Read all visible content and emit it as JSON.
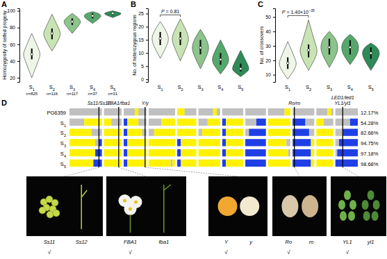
{
  "chart_data": [
    {
      "type": "violin",
      "title": "A",
      "y_label": "Homozygosity of selfed progeny",
      "categories": [
        "S1",
        "S2",
        "S3",
        "S4",
        "S5"
      ],
      "n_labels": [
        "n=825",
        "n=116",
        "n=117",
        "n=37",
        "n=31"
      ],
      "values": [
        48,
        73,
        87,
        94,
        97
      ],
      "q1": [
        42,
        66,
        83,
        91,
        95
      ],
      "q3": [
        55,
        79,
        91,
        97,
        98
      ],
      "min": [
        20,
        52,
        73,
        85,
        92
      ],
      "max": [
        73,
        96,
        97,
        99,
        100
      ],
      "colors": [
        "#eef6e8",
        "#c8e4b4",
        "#8cc48c",
        "#55a86c",
        "#2e8b57"
      ],
      "ylim": [
        15,
        103
      ],
      "yticks": [
        20,
        40,
        60,
        80,
        100
      ]
    },
    {
      "type": "violin",
      "title": "B",
      "y_label": "No. of heterozygous regions",
      "categories": [
        "S1",
        "S2",
        "S3",
        "S4",
        "S5"
      ],
      "values": [
        15.5,
        15.5,
        12,
        7.5,
        4
      ],
      "q1": [
        13,
        13,
        9.5,
        5.5,
        3
      ],
      "q3": [
        18,
        18,
        15,
        10,
        6
      ],
      "min": [
        8,
        7,
        4,
        2,
        1
      ],
      "max": [
        22,
        23,
        19,
        15,
        11
      ],
      "colors": [
        "#eef6e8",
        "#c8e4b4",
        "#8cc48c",
        "#55a86c",
        "#2e8b57"
      ],
      "ylim": [
        -1,
        27
      ],
      "yticks": [
        0,
        5,
        10,
        15,
        20,
        25
      ],
      "annotation": {
        "text": "P = 0.81",
        "y": 24.5
      }
    },
    {
      "type": "violin",
      "title": "C",
      "y_label": "No. of crossovers",
      "categories": [
        "S1",
        "S2",
        "S3",
        "S4",
        "S5"
      ],
      "values": [
        18,
        27,
        29,
        29,
        25
      ],
      "q1": [
        14,
        22,
        24,
        24,
        21
      ],
      "q3": [
        22,
        31,
        35,
        34,
        29
      ],
      "min": [
        7,
        13,
        15,
        17,
        13
      ],
      "max": [
        33,
        48,
        40,
        38,
        32
      ],
      "colors": [
        "#eef6e8",
        "#c8e4b4",
        "#8cc48c",
        "#55a86c",
        "#2e8b57"
      ],
      "ylim": [
        5,
        56
      ],
      "yticks": [
        10,
        20,
        30,
        40,
        50
      ],
      "annotation": {
        "text": "P = 1.40×10",
        "superscript": "−35",
        "y": 51
      }
    }
  ],
  "panel_d": {
    "title": "D",
    "chromosome_lengths": [
      88,
      48,
      62,
      72,
      52,
      59,
      57,
      56,
      61,
      59,
      46,
      61
    ],
    "state_colors": {
      "h": "#c0c0c0",
      "a": "#fff200",
      "b": "#1f3fe6"
    },
    "markers": [
      {
        "chromosome": 0,
        "position": 80,
        "labels": [
          "Ss11/Ss12"
        ]
      },
      {
        "chromosome": 1,
        "position": 40,
        "labels": [
          "FBA1/fba1"
        ]
      },
      {
        "chromosome": 2,
        "position": 58,
        "labels": [
          "Y/y"
        ]
      },
      {
        "chromosome": 9,
        "position": 5,
        "labels": [
          "Ro/ro"
        ]
      },
      {
        "chromosome": 11,
        "position": 20,
        "labels": [
          "LED1/led1",
          "YL1/yl1"
        ]
      }
    ],
    "rows": [
      {
        "name": "PG6359",
        "homozygosity": "12.17%",
        "segments": [
          [
            [
              88,
              "h"
            ]
          ],
          [
            [
              48,
              "h"
            ]
          ],
          [
            [
              30,
              "h"
            ],
            [
              40,
              "a"
            ],
            [
              62,
              "h"
            ]
          ],
          [
            [
              72,
              "h"
            ]
          ],
          [
            [
              20,
              "a"
            ],
            [
              52,
              "h"
            ]
          ],
          [
            [
              40,
              "h"
            ],
            [
              50,
              "a"
            ],
            [
              59,
              "h"
            ]
          ],
          [
            [
              57,
              "h"
            ]
          ],
          [
            [
              56,
              "h"
            ]
          ],
          [
            [
              45,
              "h"
            ],
            [
              61,
              "a"
            ]
          ],
          [
            [
              59,
              "h"
            ]
          ],
          [
            [
              30,
              "h"
            ],
            [
              40,
              "a"
            ],
            [
              46,
              "h"
            ]
          ],
          [
            [
              61,
              "h"
            ]
          ]
        ]
      },
      {
        "name": "S1",
        "homozygosity": "54.28%",
        "segments": [
          [
            [
              40,
              "h"
            ],
            [
              88,
              "a"
            ]
          ],
          [
            [
              20,
              "a"
            ],
            [
              48,
              "h"
            ]
          ],
          [
            [
              10,
              "b"
            ],
            [
              40,
              "a"
            ],
            [
              62,
              "h"
            ]
          ],
          [
            [
              35,
              "h"
            ],
            [
              72,
              "a"
            ]
          ],
          [
            [
              52,
              "a"
            ]
          ],
          [
            [
              25,
              "h"
            ],
            [
              59,
              "a"
            ]
          ],
          [
            [
              10,
              "b"
            ],
            [
              57,
              "a"
            ]
          ],
          [
            [
              30,
              "h"
            ],
            [
              56,
              "b"
            ]
          ],
          [
            [
              61,
              "a"
            ]
          ],
          [
            [
              35,
              "b"
            ],
            [
              59,
              "h"
            ]
          ],
          [
            [
              20,
              "a"
            ],
            [
              46,
              "h"
            ]
          ],
          [
            [
              40,
              "h"
            ],
            [
              61,
              "b"
            ]
          ]
        ]
      },
      {
        "name": "S2",
        "homozygosity": "82.66%",
        "segments": [
          [
            [
              60,
              "a"
            ],
            [
              88,
              "h"
            ]
          ],
          [
            [
              48,
              "a"
            ]
          ],
          [
            [
              10,
              "b"
            ],
            [
              50,
              "a"
            ],
            [
              62,
              "h"
            ]
          ],
          [
            [
              15,
              "h"
            ],
            [
              72,
              "a"
            ]
          ],
          [
            [
              52,
              "a"
            ]
          ],
          [
            [
              10,
              "h"
            ],
            [
              59,
              "a"
            ]
          ],
          [
            [
              10,
              "b"
            ],
            [
              57,
              "a"
            ]
          ],
          [
            [
              10,
              "h"
            ],
            [
              56,
              "b"
            ]
          ],
          [
            [
              61,
              "a"
            ]
          ],
          [
            [
              45,
              "b"
            ],
            [
              59,
              "h"
            ]
          ],
          [
            [
              46,
              "a"
            ]
          ],
          [
            [
              20,
              "h"
            ],
            [
              61,
              "b"
            ]
          ]
        ]
      },
      {
        "name": "S3",
        "homozygosity": "94.75%",
        "segments": [
          [
            [
              70,
              "a"
            ],
            [
              80,
              "h"
            ],
            [
              88,
              "b"
            ]
          ],
          [
            [
              48,
              "a"
            ]
          ],
          [
            [
              10,
              "b"
            ],
            [
              62,
              "a"
            ]
          ],
          [
            [
              72,
              "a"
            ]
          ],
          [
            [
              10,
              "b"
            ],
            [
              52,
              "a"
            ]
          ],
          [
            [
              59,
              "a"
            ]
          ],
          [
            [
              10,
              "b"
            ],
            [
              57,
              "a"
            ]
          ],
          [
            [
              56,
              "b"
            ]
          ],
          [
            [
              50,
              "a"
            ],
            [
              61,
              "h"
            ]
          ],
          [
            [
              50,
              "b"
            ],
            [
              59,
              "a"
            ]
          ],
          [
            [
              46,
              "a"
            ]
          ],
          [
            [
              10,
              "h"
            ],
            [
              61,
              "b"
            ]
          ]
        ]
      },
      {
        "name": "S4",
        "homozygosity": "97.18%",
        "segments": [
          [
            [
              70,
              "a"
            ],
            [
              88,
              "b"
            ]
          ],
          [
            [
              48,
              "a"
            ]
          ],
          [
            [
              10,
              "b"
            ],
            [
              62,
              "a"
            ]
          ],
          [
            [
              72,
              "a"
            ]
          ],
          [
            [
              10,
              "b"
            ],
            [
              52,
              "a"
            ]
          ],
          [
            [
              59,
              "a"
            ]
          ],
          [
            [
              10,
              "b"
            ],
            [
              57,
              "a"
            ]
          ],
          [
            [
              56,
              "b"
            ]
          ],
          [
            [
              55,
              "a"
            ],
            [
              61,
              "h"
            ]
          ],
          [
            [
              50,
              "b"
            ],
            [
              59,
              "a"
            ]
          ],
          [
            [
              46,
              "a"
            ]
          ],
          [
            [
              5,
              "h"
            ],
            [
              61,
              "b"
            ]
          ]
        ]
      },
      {
        "name": "S5",
        "homozygosity": "98.68%",
        "segments": [
          [
            [
              65,
              "a"
            ],
            [
              88,
              "b"
            ]
          ],
          [
            [
              48,
              "a"
            ]
          ],
          [
            [
              10,
              "b"
            ],
            [
              62,
              "a"
            ]
          ],
          [
            [
              60,
              "a"
            ],
            [
              65,
              "h"
            ],
            [
              72,
              "a"
            ]
          ],
          [
            [
              10,
              "b"
            ],
            [
              52,
              "a"
            ]
          ],
          [
            [
              59,
              "a"
            ]
          ],
          [
            [
              10,
              "b"
            ],
            [
              57,
              "a"
            ]
          ],
          [
            [
              56,
              "b"
            ]
          ],
          [
            [
              61,
              "a"
            ]
          ],
          [
            [
              50,
              "b"
            ],
            [
              59,
              "a"
            ]
          ],
          [
            [
              46,
              "a"
            ]
          ],
          [
            [
              61,
              "b"
            ]
          ]
        ]
      }
    ],
    "photos": [
      {
        "labels": [
          "Ss11",
          "Ss12"
        ],
        "check": "√"
      },
      {
        "labels": [
          "FBA1",
          "fba1"
        ],
        "check": "√"
      },
      {
        "labels": [
          "Y",
          "y"
        ],
        "check": "√"
      },
      {
        "labels": [
          "Ro",
          "ro"
        ],
        "check": "√"
      },
      {
        "labels": [
          "YL1",
          "yl1"
        ],
        "check": "√"
      }
    ]
  }
}
